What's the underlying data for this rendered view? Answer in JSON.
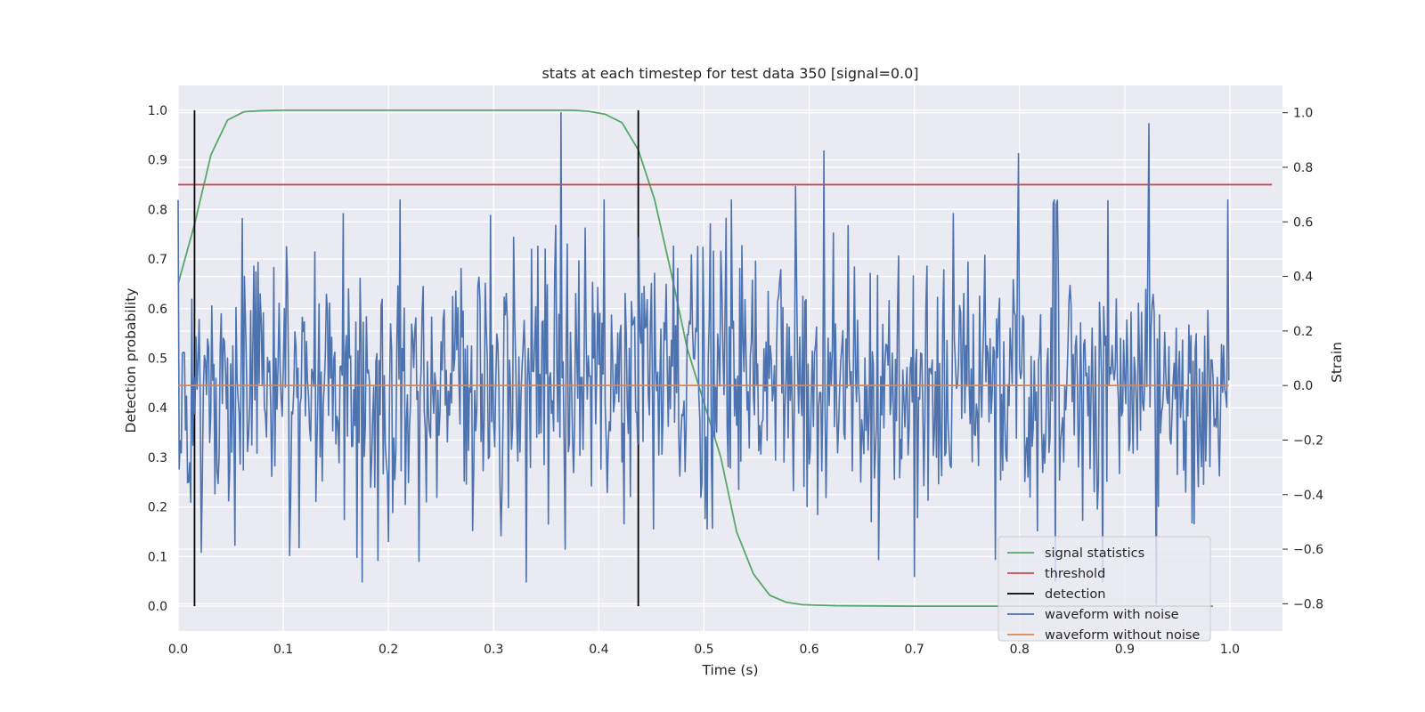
{
  "chart_data": {
    "type": "line",
    "title": "stats at each timestep for test data 350 [signal=0.0]",
    "xlabel": "Time (s)",
    "ylabel_left": "Detection probability",
    "ylabel_right": "Strain",
    "xlim": [
      0.0,
      1.05
    ],
    "ylim_left": [
      -0.05,
      1.05
    ],
    "ylim_right": [
      -0.9,
      1.1
    ],
    "xticks": [
      "0.0",
      "0.1",
      "0.2",
      "0.3",
      "0.4",
      "0.5",
      "0.6",
      "0.7",
      "0.8",
      "0.9",
      "1.0"
    ],
    "yticks_left": [
      "0.0",
      "0.1",
      "0.2",
      "0.3",
      "0.4",
      "0.5",
      "0.6",
      "0.7",
      "0.8",
      "0.9",
      "1.0"
    ],
    "yticks_right": [
      "−0.8",
      "−0.6",
      "−0.4",
      "−0.2",
      "0.0",
      "0.2",
      "0.4",
      "0.6",
      "0.8",
      "1.0"
    ],
    "grid": true,
    "legend_placement": "lower-right",
    "series": [
      {
        "name": "signal statistics",
        "axis": "left",
        "color": "#55a868",
        "x": [
          0.0,
          0.0156,
          0.0312,
          0.0469,
          0.0625,
          0.0781,
          0.1,
          0.2,
          0.3,
          0.375,
          0.39,
          0.406,
          0.422,
          0.4375,
          0.453,
          0.469,
          0.484,
          0.5,
          0.516,
          0.531,
          0.547,
          0.5625,
          0.578,
          0.594,
          0.609,
          0.625,
          0.7,
          0.8,
          0.9,
          0.984
        ],
        "y": [
          0.65,
          0.77,
          0.91,
          0.98,
          0.997,
          0.999,
          1.0,
          1.0,
          1.0,
          1.0,
          0.998,
          0.992,
          0.975,
          0.92,
          0.82,
          0.67,
          0.52,
          0.41,
          0.3,
          0.15,
          0.065,
          0.022,
          0.008,
          0.003,
          0.002,
          0.001,
          0.0,
          0.0,
          0.0,
          0.0
        ]
      },
      {
        "name": "threshold",
        "axis": "left",
        "color": "#c44e52",
        "x": [
          0.0,
          1.04
        ],
        "y": [
          0.85,
          0.85
        ]
      },
      {
        "name": "detection",
        "axis": "left",
        "color": "#000000",
        "x": [
          0.0156,
          0.4375
        ],
        "y": [
          0.0,
          1.0
        ]
      },
      {
        "name": "waveform with noise",
        "axis": "right",
        "color": "#4c72b0",
        "n_points": 1000,
        "x_range": [
          0.0,
          0.999
        ],
        "std": 0.25,
        "peaks": [
          {
            "x": 0.364,
            "y": 1.0
          },
          {
            "x": 0.368,
            "y": -0.6
          },
          {
            "x": 0.614,
            "y": 0.86
          },
          {
            "x": 0.923,
            "y": 0.96
          },
          {
            "x": 0.799,
            "y": 0.85
          },
          {
            "x": 0.587,
            "y": 0.73
          },
          {
            "x": 0.7,
            "y": -0.7
          },
          {
            "x": 0.17,
            "y": -0.63
          },
          {
            "x": 0.157,
            "y": 0.63
          },
          {
            "x": 0.93,
            "y": -0.8
          }
        ]
      },
      {
        "name": "waveform without noise",
        "axis": "right",
        "color": "#dd8452",
        "x": [
          0.0,
          0.999
        ],
        "y": [
          0.0,
          0.0
        ]
      }
    ]
  }
}
